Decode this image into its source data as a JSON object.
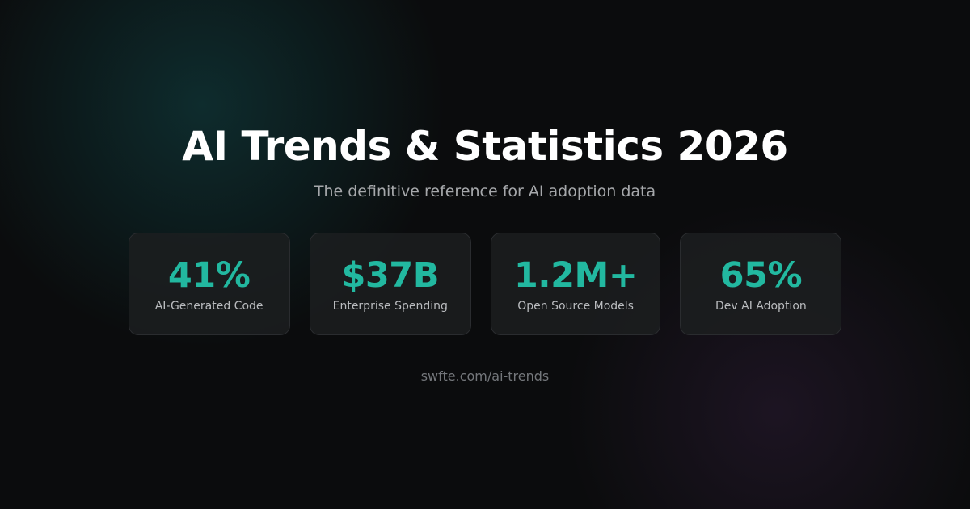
{
  "header": {
    "title": "AI Trends & Statistics 2026",
    "subtitle": "The definitive reference for AI adoption data"
  },
  "stats": [
    {
      "value": "41%",
      "label": "AI-Generated Code"
    },
    {
      "value": "$37B",
      "label": "Enterprise Spending"
    },
    {
      "value": "1.2M+",
      "label": "Open Source Models"
    },
    {
      "value": "65%",
      "label": "Dev AI Adoption"
    }
  ],
  "footer": {
    "url": "swfte.com/ai-trends"
  }
}
